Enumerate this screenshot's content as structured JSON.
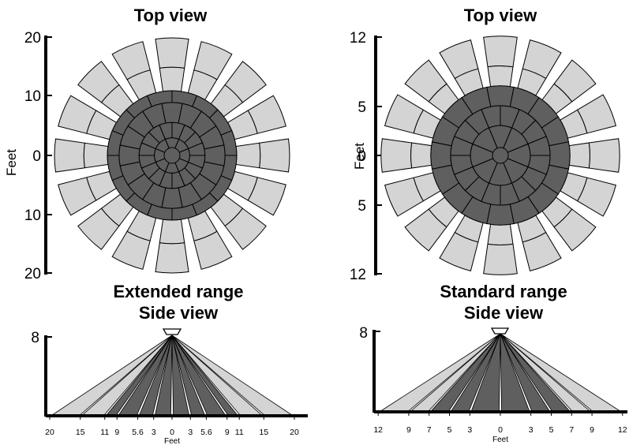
{
  "colors": {
    "light": "#d4d4d4",
    "dark": "#5f5f5f",
    "stroke": "#000000",
    "axis": "#000000"
  },
  "panels": {
    "extended_top": {
      "title": "Top view",
      "ylabel": "Feet",
      "tick_labels": [
        "20",
        "10",
        "0",
        "10",
        "20"
      ],
      "range_feet": 20,
      "spokes": 16,
      "dark_rings": [
        3,
        5.6,
        9,
        11
      ],
      "light_rings": [
        15,
        20
      ]
    },
    "standard_top": {
      "title": "Top view",
      "ylabel": "Feet",
      "tick_labels": [
        "12",
        "5",
        "0",
        "5",
        "12"
      ],
      "range_feet": 12,
      "spokes": 16,
      "dark_rings": [
        3,
        5,
        7
      ],
      "light_rings": [
        9,
        12
      ]
    },
    "extended_side": {
      "title_line1": "Extended range",
      "title_line2": "Side view",
      "height_label": "8",
      "xlabel": "Feet",
      "tick_labels": [
        "20",
        "15",
        "11",
        "9",
        "5.6",
        "3",
        "0",
        "3",
        "5.6",
        "9",
        "11",
        "15",
        "20"
      ],
      "beam_offsets": [
        -20,
        -15,
        -11,
        -9,
        -5.6,
        -3,
        0,
        3,
        5.6,
        9,
        11,
        15,
        20
      ],
      "dark_limit": 11
    },
    "standard_side": {
      "title_line1": "Standard range",
      "title_line2": "Side view",
      "height_label": "8",
      "xlabel": "Feet",
      "tick_labels": [
        "12",
        "9",
        "7",
        "5",
        "3",
        "0",
        "3",
        "5",
        "7",
        "9",
        "12"
      ],
      "beam_offsets": [
        -12,
        -9,
        -7,
        -5,
        -3,
        0,
        3,
        5,
        7,
        9,
        12
      ],
      "dark_limit": 7
    }
  }
}
